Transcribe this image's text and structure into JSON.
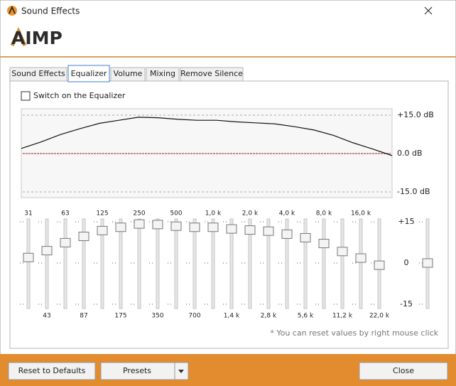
{
  "window": {
    "title": "Sound Effects",
    "logo": "AIMP"
  },
  "tabs": [
    "Sound Effects",
    "Equalizer",
    "Volume",
    "Mixing",
    "Remove Silence"
  ],
  "equalizer": {
    "switch_label": "Switch on the Equalizer",
    "graph_ticks": [
      {
        "value": 15,
        "label": "+15.0 dB"
      },
      {
        "value": 0,
        "label": "0.0 dB"
      },
      {
        "value": -15,
        "label": "-15.0 dB"
      }
    ],
    "scale_ticks": [
      {
        "value": 15,
        "label": "+15"
      },
      0,
      {
        "value": -15,
        "label": "-15"
      }
    ],
    "bands": [
      {
        "label": "31",
        "value": 2
      },
      {
        "label": "43",
        "value": 4.5
      },
      {
        "label": "63",
        "value": 7.4
      },
      {
        "label": "87",
        "value": 9.7
      },
      {
        "label": "125",
        "value": 11.8
      },
      {
        "label": "175",
        "value": 13
      },
      {
        "label": "250",
        "value": 14.2
      },
      {
        "label": "350",
        "value": 14
      },
      {
        "label": "500",
        "value": 13.4
      },
      {
        "label": "700",
        "value": 13
      },
      {
        "label": "1,0 k",
        "value": 13
      },
      {
        "label": "1,4 k",
        "value": 12.4
      },
      {
        "label": "2,0 k",
        "value": 12
      },
      {
        "label": "2,8 k",
        "value": 11.6
      },
      {
        "label": "4,0 k",
        "value": 10.5
      },
      {
        "label": "5,6 k",
        "value": 9.2
      },
      {
        "label": "8,0 k",
        "value": 7.1
      },
      {
        "label": "11,2 k",
        "value": 4.2
      },
      {
        "label": "16,0 k",
        "value": 1.8
      },
      {
        "label": "22,0 k",
        "value": -0.8
      }
    ],
    "preamp": 0,
    "note": "* You can reset values by right mouse click"
  },
  "buttons": {
    "reset": "Reset to Defaults",
    "presets": "Presets",
    "close": "Close"
  }
}
